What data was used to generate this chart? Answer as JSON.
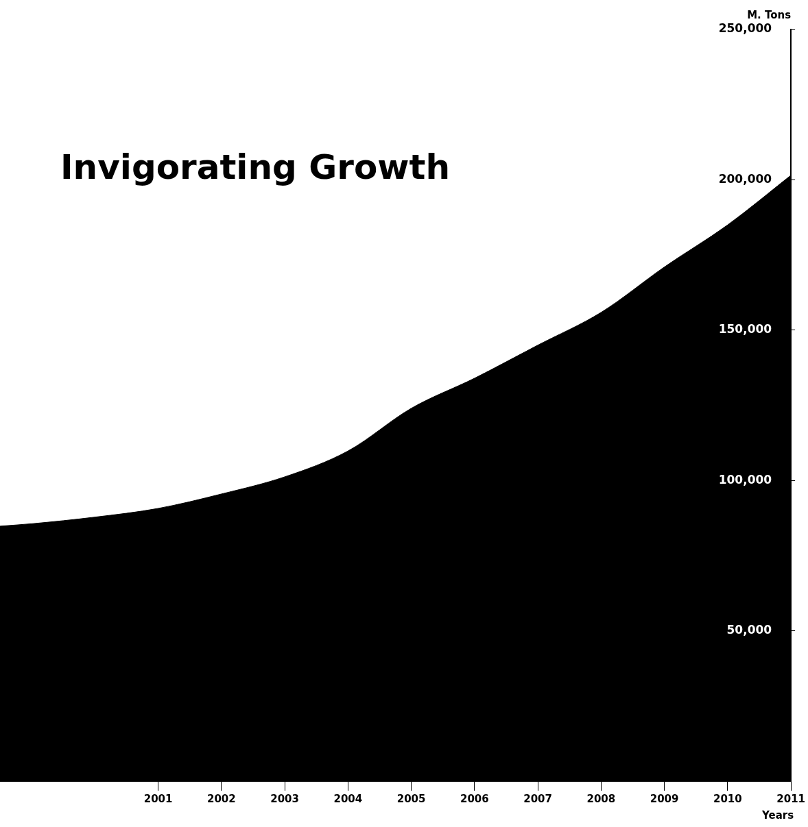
{
  "chart_data": {
    "type": "area",
    "title": "Invigorating Growth",
    "xlabel": "Years",
    "ylabel": "M. Tons",
    "x": [
      1998.5,
      1999,
      2000,
      2001,
      2002,
      2003,
      2004,
      2005,
      2006,
      2007,
      2008,
      2009,
      2010,
      2011
    ],
    "values": [
      84800,
      85600,
      87800,
      90700,
      95500,
      101200,
      109800,
      124000,
      134000,
      145000,
      155900,
      171000,
      185000,
      201500
    ],
    "color": "#000000",
    "xlim": [
      1998.5,
      2011
    ],
    "xticks": [
      2001,
      2002,
      2003,
      2004,
      2005,
      2006,
      2007,
      2008,
      2009,
      2010,
      2011
    ],
    "ylim": [
      0,
      250000
    ],
    "yticks": [
      {
        "value": 50000,
        "label": "50,000"
      },
      {
        "value": 100000,
        "label": "100,000"
      },
      {
        "value": 150000,
        "label": "150,000"
      },
      {
        "value": 200000,
        "label": "200,000"
      },
      {
        "value": 250000,
        "label": "250,000"
      }
    ],
    "grid": false,
    "legend": false
  }
}
